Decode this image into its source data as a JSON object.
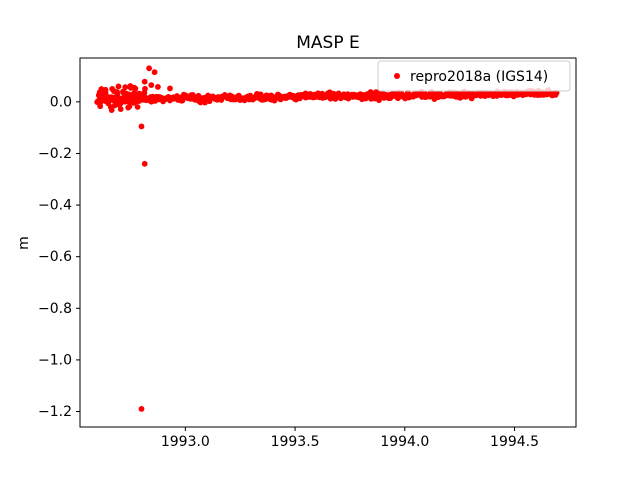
{
  "figure": {
    "background": "#ffffff",
    "axes_background": "#ffffff",
    "spine_color": "#000000"
  },
  "chart_data": {
    "type": "scatter",
    "title": "MASP E",
    "xlabel": "",
    "ylabel": "m",
    "xlim": [
      1992.52,
      1994.78
    ],
    "ylim": [
      -1.26,
      0.17
    ],
    "grid": false,
    "legend": {
      "label": "repro2018a (IGS14)",
      "position": "upper right",
      "marker_color": "#ff0000"
    },
    "x_ticks": {
      "values": [
        1993.0,
        1993.5,
        1994.0,
        1994.5
      ],
      "labels": [
        "1993.0",
        "1993.5",
        "1994.0",
        "1994.5"
      ]
    },
    "y_ticks": {
      "values": [
        0.0,
        -0.2,
        -0.4,
        -0.6,
        -0.8,
        -1.0,
        -1.2
      ],
      "labels": [
        "0.0",
        "−0.2",
        "−0.4",
        "−0.6",
        "−0.8",
        "−1.0",
        "−1.2"
      ]
    },
    "series": [
      {
        "name": "repro2018a (IGS14)",
        "color": "#ff0000",
        "marker": "dot",
        "marker_radius_px": 2.9,
        "dense_band": {
          "x_start": 1992.6,
          "x_end": 1994.69,
          "n_points": 520,
          "y_start": 0.008,
          "y_end": 0.034,
          "jitter_std": 0.006,
          "seed": 12345
        },
        "early_scatter": {
          "x_start": 1992.6,
          "x_end": 1992.82,
          "n_points": 70,
          "y_center": 0.018,
          "y_std": 0.02,
          "seed": 99
        },
        "outliers": [
          [
            1992.8,
            -0.095
          ],
          [
            1992.815,
            -0.24
          ],
          [
            1992.8,
            -1.19
          ],
          [
            1992.835,
            0.13
          ],
          [
            1992.86,
            0.115
          ],
          [
            1992.815,
            0.078
          ],
          [
            1992.845,
            0.065
          ],
          [
            1992.875,
            0.058
          ],
          [
            1992.66,
            -0.02
          ],
          [
            1992.7,
            -0.012
          ],
          [
            1992.93,
            0.052
          ]
        ]
      }
    ]
  }
}
